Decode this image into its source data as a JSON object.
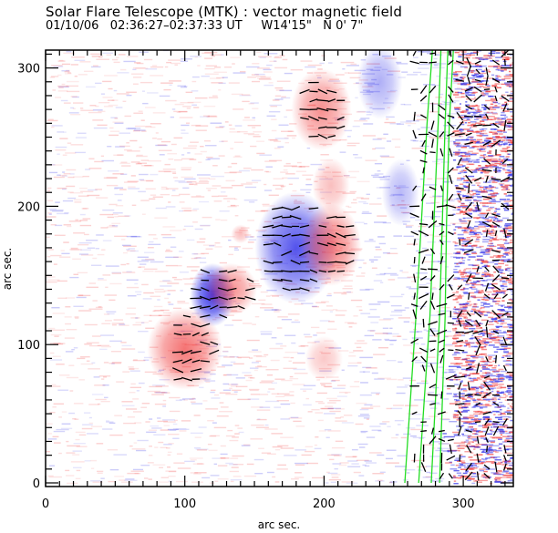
{
  "header": {
    "title": "Solar Flare Telescope (MTK) : vector magnetic field",
    "date": "01/10/06",
    "time_range": "02:36:27–02:37:33 UT",
    "position_ew": "W14'15\"",
    "position_ns": "N 0' 7\""
  },
  "chart_data": {
    "type": "heatmap",
    "title": "Solar Flare Telescope (MTK) : vector magnetic field",
    "subtitle": "01/10/06  02:36:27–02:37:33 UT    W14'15\"   N 0' 7\"",
    "xlabel": "arc sec.",
    "ylabel": "arc sec.",
    "xlim": [
      0,
      337
    ],
    "ylim": [
      0,
      315
    ],
    "xticks": [
      0,
      100,
      200,
      300
    ],
    "yticks": [
      0,
      100,
      200,
      300
    ],
    "minor_tick_interval": 10,
    "colormap": {
      "positive_polarity": "#f03a3a",
      "negative_polarity": "#2a2ae8",
      "limb_contour": "#22dd22",
      "vectors": "#000000"
    },
    "features": [
      {
        "name": "negative spot A",
        "polarity": "negative",
        "x": 120,
        "y": 136,
        "rx": 12,
        "ry": 17,
        "strength": 1.0
      },
      {
        "name": "negative region B",
        "polarity": "negative",
        "x": 180,
        "y": 170,
        "rx": 22,
        "ry": 30,
        "strength": 0.85
      },
      {
        "name": "positive region C",
        "polarity": "positive",
        "x": 100,
        "y": 97,
        "rx": 20,
        "ry": 22,
        "strength": 0.75
      },
      {
        "name": "positive region D",
        "polarity": "positive",
        "x": 133,
        "y": 140,
        "rx": 14,
        "ry": 14,
        "strength": 0.6
      },
      {
        "name": "positive region E",
        "polarity": "positive",
        "x": 205,
        "y": 172,
        "rx": 16,
        "ry": 22,
        "strength": 0.7
      },
      {
        "name": "positive region F",
        "polarity": "positive",
        "x": 198,
        "y": 270,
        "rx": 16,
        "ry": 22,
        "strength": 0.6
      },
      {
        "name": "positive region G",
        "polarity": "positive",
        "x": 205,
        "y": 215,
        "rx": 10,
        "ry": 15,
        "strength": 0.35
      },
      {
        "name": "positive region H",
        "polarity": "positive",
        "x": 140,
        "y": 180,
        "rx": 5,
        "ry": 5,
        "strength": 0.35
      },
      {
        "name": "positive region I",
        "polarity": "positive",
        "x": 200,
        "y": 90,
        "rx": 10,
        "ry": 12,
        "strength": 0.3
      },
      {
        "name": "negative region J",
        "polarity": "negative",
        "x": 240,
        "y": 290,
        "rx": 12,
        "ry": 20,
        "strength": 0.4
      },
      {
        "name": "negative region K",
        "polarity": "negative",
        "x": 255,
        "y": 210,
        "rx": 10,
        "ry": 18,
        "strength": 0.35
      }
    ],
    "limb_contours": [
      {
        "points": [
          [
            258,
            0
          ],
          [
            262,
            60
          ],
          [
            266,
            120
          ],
          [
            270,
            190
          ],
          [
            274,
            260
          ],
          [
            278,
            315
          ]
        ]
      },
      {
        "points": [
          [
            268,
            0
          ],
          [
            272,
            60
          ],
          [
            276,
            120
          ],
          [
            279,
            190
          ],
          [
            282,
            260
          ],
          [
            284,
            315
          ]
        ]
      },
      {
        "points": [
          [
            277,
            0
          ],
          [
            280,
            60
          ],
          [
            283,
            120
          ],
          [
            285,
            190
          ],
          [
            287,
            260
          ],
          [
            289,
            315
          ]
        ]
      },
      {
        "points": [
          [
            283,
            0
          ],
          [
            285,
            60
          ],
          [
            287,
            120
          ],
          [
            288,
            190
          ],
          [
            290,
            260
          ],
          [
            293,
            315
          ]
        ]
      }
    ]
  }
}
